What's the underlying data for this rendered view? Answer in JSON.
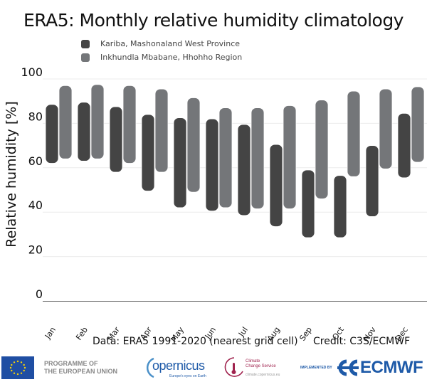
{
  "chart_data": {
    "type": "bar",
    "subtype": "floating-range",
    "title": "ERA5: Monthly relative humidity climatology",
    "xlabel": "",
    "ylabel": "Relative humidity [%]",
    "ylim": [
      0,
      100
    ],
    "yticks": [
      0,
      20,
      40,
      60,
      80,
      100
    ],
    "grid": true,
    "legend_position": "top-center",
    "categories": [
      "Jan",
      "Feb",
      "Mar",
      "Apr",
      "May",
      "Jun",
      "Jul",
      "Aug",
      "Sep",
      "Oct",
      "Nov",
      "Dec"
    ],
    "series": [
      {
        "name": "Kariba, Mashonaland West Province",
        "color": "#444444",
        "low": [
          62,
          63,
          58,
          49.5,
          42,
          40.5,
          38.5,
          33.5,
          28.5,
          28.5,
          38,
          55.5
        ],
        "high": [
          88.5,
          89.5,
          87.5,
          84,
          82.5,
          82,
          79.5,
          70.5,
          59,
          56.5,
          70,
          84.5
        ]
      },
      {
        "name": "Inkhundla Mbabane, Hhohho Region",
        "color": "#747679",
        "low": [
          64,
          64,
          62,
          58,
          49,
          42,
          41.5,
          41.5,
          46,
          56,
          59.5,
          62.5
        ],
        "high": [
          97,
          97.5,
          97,
          95.5,
          91.5,
          87,
          87,
          88,
          90.5,
          94.5,
          95.5,
          96.5
        ]
      }
    ]
  },
  "footer": {
    "data_note": "Data: ERA5 1991-2020 (nearest grid cell)",
    "credit": "Credit: C3S/ECMWF"
  },
  "logos": {
    "eu_line1": "PROGRAMME OF",
    "eu_line2": "THE EUROPEAN UNION",
    "copernicus": "opernicus",
    "copernicus_tagline": "Europe's eyes on Earth",
    "c3s_line1": "Climate",
    "c3s_line2": "Change Service",
    "c3s_url": "climate.copernicus.eu",
    "implemented_by": "IMPLEMENTED BY",
    "ecmwf": "ECMWF"
  }
}
